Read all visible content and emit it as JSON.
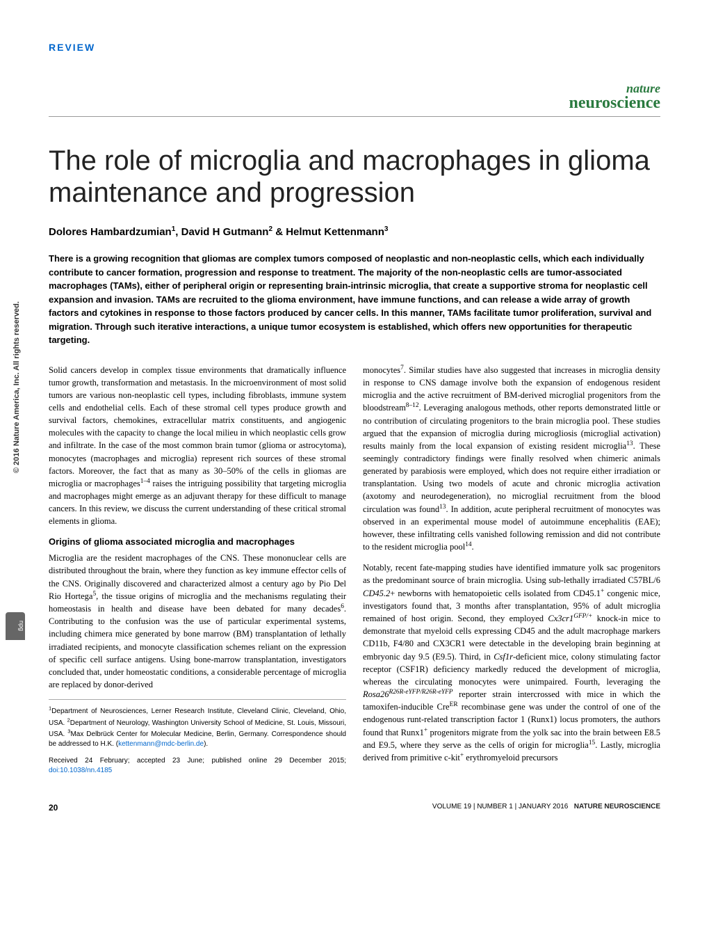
{
  "sidebar_copyright": "© 2016 Nature America, Inc. All rights reserved.",
  "npg": "npg",
  "section_label": "REVIEW",
  "journal": {
    "top": "nature",
    "bottom": "neuroscience"
  },
  "title": "The role of microglia and macrophages in glioma maintenance and progression",
  "authors_html": "Dolores Hambardzumian<sup>1</sup>, David H Gutmann<sup>2</sup> & Helmut Kettenmann<sup>3</sup>",
  "abstract": "There is a growing recognition that gliomas are complex tumors composed of neoplastic and non-neoplastic cells, which each individually contribute to cancer formation, progression and response to treatment. The majority of the non-neoplastic cells are tumor-associated macrophages (TAMs), either of peripheral origin or representing brain-intrinsic microglia, that create a supportive stroma for neoplastic cell expansion and invasion. TAMs are recruited to the glioma environment, have immune functions, and can release a wide array of growth factors and cytokines in response to those factors produced by cancer cells. In this manner, TAMs facilitate tumor proliferation, survival and migration. Through such iterative interactions, a unique tumor ecosystem is established, which offers new opportunities for therapeutic targeting.",
  "body": {
    "p1": "Solid cancers develop in complex tissue environments that dramatically influence tumor growth, transformation and metastasis. In the microenvironment of most solid tumors are various non-neoplastic cell types, including fibroblasts, immune system cells and endothelial cells. Each of these stromal cell types produce growth and survival factors, chemokines, extracellular matrix constituents, and angiogenic molecules with the capacity to change the local milieu in which neoplastic cells grow and infiltrate. In the case of the most common brain tumor (glioma or astrocytoma), monocytes (macrophages and microglia) represent rich sources of these stromal factors. Moreover, the fact that as many as 30–50% of the cells in gliomas are microglia or macrophages<sup>1–4</sup> raises the intriguing possibility that targeting microglia and macrophages might emerge as an adjuvant therapy for these difficult to manage cancers. In this review, we discuss the current understanding of these critical stromal elements in glioma.",
    "subheading1": "Origins of glioma associated microglia and macrophages",
    "p2": "Microglia are the resident macrophages of the CNS. These mononuclear cells are distributed throughout the brain, where they function as key immune effector cells of the CNS. Originally discovered and characterized almost a century ago by Pio Del Rio Hortega<sup>5</sup>, the tissue origins of microglia and the mechanisms regulating their homeostasis in health and disease have been debated for many decades<sup>6</sup>. Contributing to the confusion was the use of particular experimental systems, including chimera mice generated by bone marrow (BM) transplantation of lethally irradiated recipients, and monocyte classification schemes reliant on the expression of specific cell surface antigens. Using bone-marrow transplantation, investigators concluded that, under homeostatic conditions, a considerable percentage of microglia are replaced by donor-derived",
    "p3": "monocytes<sup>7</sup>. Similar studies have also suggested that increases in microglia density in response to CNS damage involve both the expansion of endogenous resident microglia and the active recruitment of BM-derived microglial progenitors from the bloodstream<sup>8–12</sup>. Leveraging analogous methods, other reports demonstrated little or no contribution of circulating progenitors to the brain microglia pool. These studies argued that the expansion of microglia during microgliosis (microglial activation) results mainly from the local expansion of existing resident microglia<sup>13</sup>. These seemingly contradictory findings were finally resolved when chimeric animals generated by parabiosis were employed, which does not require either irradiation or transplantation. Using two models of acute and chronic microglia activation (axotomy and neurodegeneration), no microglial recruitment from the blood circulation was found<sup>13</sup>. In addition, acute peripheral recruitment of monocytes was observed in an experimental mouse model of autoimmune encephalitis (EAE); however, these infiltrating cells vanished following remission and did not contribute to the resident microglia pool<sup>14</sup>.",
    "p4": "Notably, recent fate-mapping studies have identified immature yolk sac progenitors as the predominant source of brain microglia. Using sub-lethally irradiated C57BL/6 <em>CD45.2</em>+ newborns with hematopoietic cells isolated from CD45.1<sup>+</sup> congenic mice, investigators found that, 3 months after transplantation, 95% of adult microglia remained of host origin. Second, they employed <em>Cx3cr1<sup>GFP/+</sup></em> knock-in mice to demonstrate that myeloid cells expressing CD45 and the adult macrophage markers CD11b, F4/80 and CX3CR1 were detectable in the developing brain beginning at embryonic day 9.5 (E9.5). Third, in <em>Csf1r</em>-deficient mice, colony stimulating factor receptor (CSF1R) deficiency markedly reduced the development of microglia, whereas the circulating monocytes were unimpaired. Fourth, leveraging the <em>Rosa26<sup>R26R-eYFP/R26R-eYFP</sup></em> reporter strain intercrossed with mice in which the tamoxifen-inducible Cre<sup>ER</sup> recombinase gene was under the control of one of the endogenous runt-related transcription factor 1 (Runx1) locus promoters, the authors found that Runx1<sup>+</sup> progenitors migrate from the yolk sac into the brain between E8.5 and E9.5, where they serve as the cells of origin for microglia<sup>15</sup>. Lastly, microglia derived from primitive c-kit<sup>+</sup> erythromyeloid precursors"
  },
  "affiliations": "<sup>1</sup>Department of Neurosciences, Lerner Research Institute, Cleveland Clinic, Cleveland, Ohio, USA. <sup>2</sup>Department of Neurology, Washington University School of Medicine, St. Louis, Missouri, USA. <sup>3</sup>Max Delbrück Center for Molecular Medicine, Berlin, Germany. Correspondence should be addressed to H.K. (",
  "email": "kettenmann@mdc-berlin.de",
  "affil_close": ").",
  "received": "Received 24 February; accepted 23 June; published online 29 December 2015; ",
  "doi": "doi:10.1038/nn.4185",
  "footer": {
    "page": "20",
    "volume": "VOLUME 19 | NUMBER 1 | JANUARY 2016",
    "journal": "NATURE NEUROSCIENCE"
  },
  "colors": {
    "section_label": "#0066cc",
    "journal_green": "#2a7a3f",
    "link": "#0066cc"
  }
}
